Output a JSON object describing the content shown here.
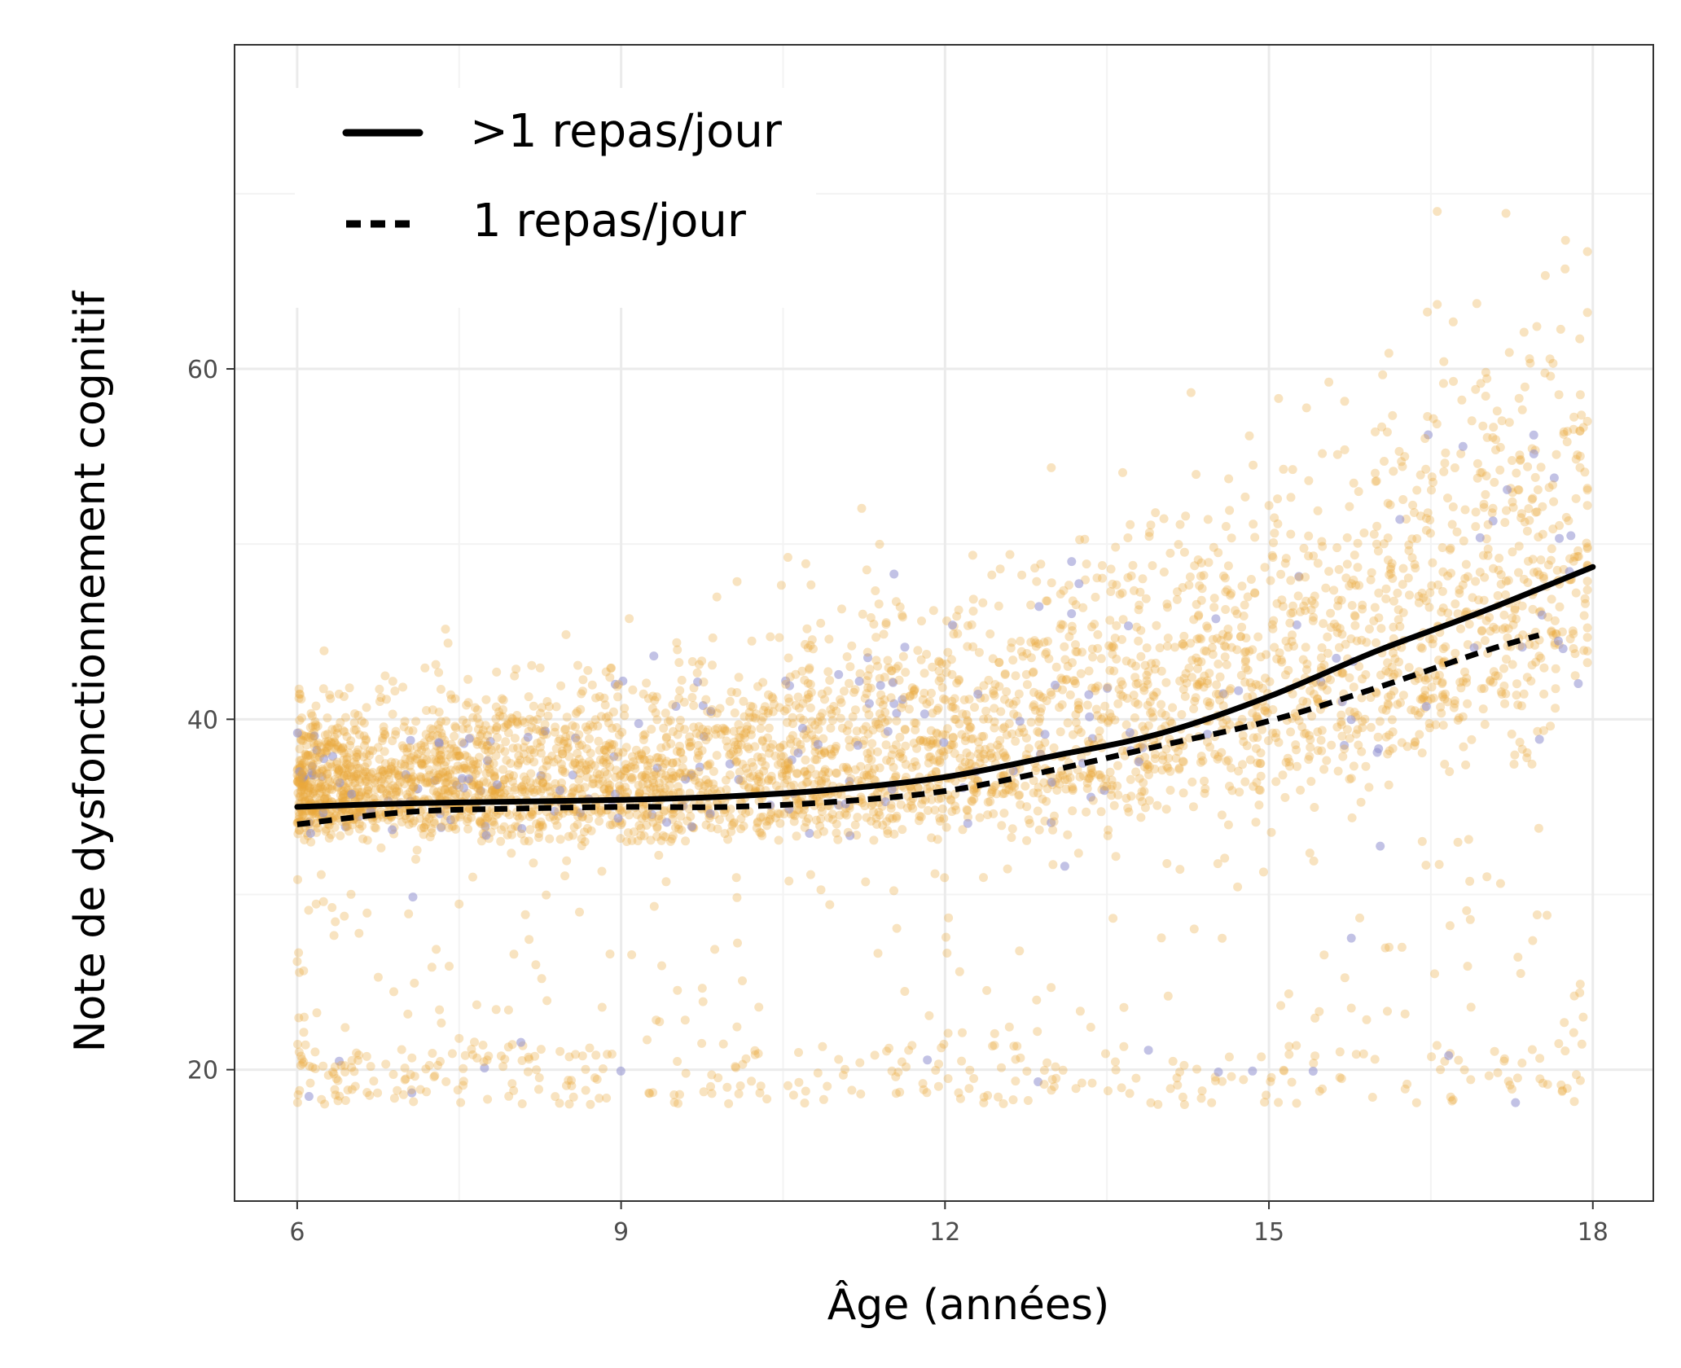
{
  "chart_data": {
    "type": "scatter",
    "title": "",
    "xlabel": "Âge (années)",
    "ylabel": "Note de dysfonctionnement cognitif",
    "xlim": [
      5.42,
      18.56
    ],
    "ylim": [
      12.5,
      78.5
    ],
    "xticks": [
      6,
      9,
      12,
      15,
      18
    ],
    "yticks": [
      20,
      40,
      60
    ],
    "xtick_labels": [
      "6",
      "9",
      "12",
      "15",
      "18"
    ],
    "ytick_labels": [
      "20",
      "40",
      "60"
    ],
    "grid": true,
    "legend_position": "top-left",
    "colors": {
      "points_main": "#e9a93a",
      "points_secondary": "#8f8fd0",
      "line": "#000000",
      "grid": "#ebebeb",
      "panel_border": "#333333"
    },
    "series": [
      {
        "name": ">1 repas/jour",
        "style": "solid",
        "x": [
          6,
          7,
          8,
          9,
          10,
          11,
          12,
          13,
          14,
          15,
          16,
          17,
          18
        ],
        "y": [
          35.0,
          35.2,
          35.3,
          35.4,
          35.6,
          36.0,
          36.7,
          37.9,
          39.2,
          41.3,
          43.9,
          46.2,
          48.7
        ]
      },
      {
        "name": "1 repas/jour",
        "style": "dashed",
        "x": [
          6,
          7,
          8,
          9,
          10,
          11,
          12,
          13,
          14,
          15,
          16,
          17,
          17.5
        ],
        "y": [
          34.0,
          34.7,
          34.9,
          35.0,
          35.0,
          35.3,
          35.9,
          37.1,
          38.5,
          39.9,
          41.8,
          43.9,
          44.8
        ]
      }
    ]
  }
}
